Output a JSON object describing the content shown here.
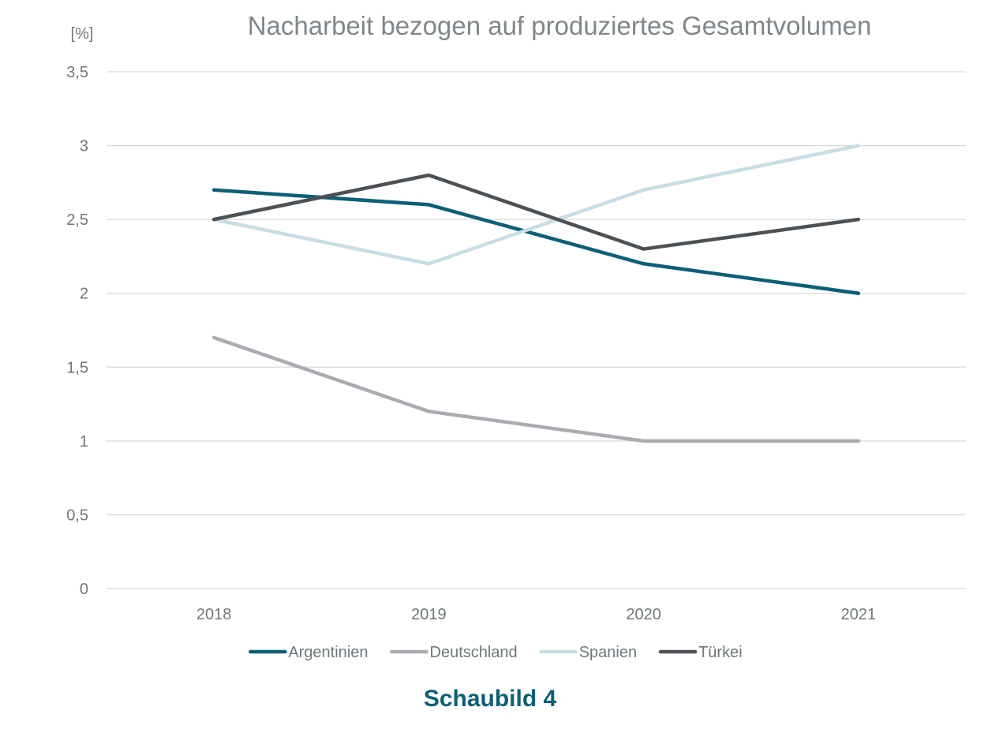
{
  "chart_data": {
    "type": "line",
    "title": "Nacharbeit bezogen auf produziertes Gesamtvolumen",
    "ylabel": "[%]",
    "xlabel": "",
    "categories": [
      "2018",
      "2019",
      "2020",
      "2021"
    ],
    "ylim": [
      0,
      3.5
    ],
    "yticks": [
      {
        "value": 0,
        "label": "0"
      },
      {
        "value": 0.5,
        "label": "0,5"
      },
      {
        "value": 1,
        "label": "1"
      },
      {
        "value": 1.5,
        "label": "1,5"
      },
      {
        "value": 2,
        "label": "2"
      },
      {
        "value": 2.5,
        "label": "2,5"
      },
      {
        "value": 3,
        "label": "3"
      },
      {
        "value": 3.5,
        "label": "3,5"
      }
    ],
    "grid": true,
    "legend_position": "bottom",
    "series": [
      {
        "name": "Argentinien",
        "color": "#0b5f77",
        "values": [
          2.7,
          2.6,
          2.2,
          2.0
        ]
      },
      {
        "name": "Deutschland",
        "color": "#a8abb0",
        "values": [
          1.7,
          1.2,
          1.0,
          1.0
        ]
      },
      {
        "name": "Spanien",
        "color": "#c8dde5",
        "values": [
          2.5,
          2.2,
          2.7,
          3.0
        ]
      },
      {
        "name": "Türkei",
        "color": "#4c5155",
        "values": [
          2.5,
          2.8,
          2.3,
          2.5
        ]
      }
    ]
  },
  "caption": "Schaubild 4"
}
